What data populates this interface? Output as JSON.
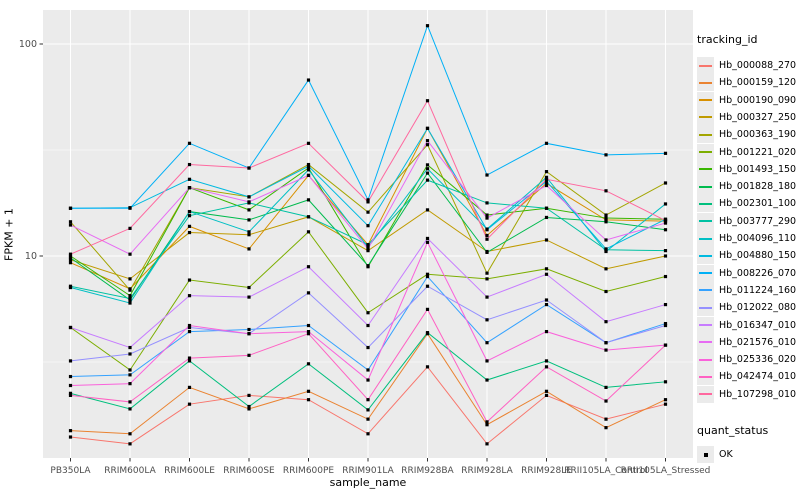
{
  "chart_data": {
    "type": "line",
    "title": "",
    "xlabel": "sample_name",
    "ylabel": "FPKM + 1",
    "y_scale": "log10",
    "y_ticks": [
      {
        "value": 10,
        "label": "10"
      },
      {
        "value": 100,
        "label": "100"
      }
    ],
    "y_minor_ticks": [
      3.162,
      31.62
    ],
    "ylim": [
      1.1,
      145
    ],
    "grid": true,
    "legend_position": "right",
    "legend_title": "tracking_id",
    "quant_legend": {
      "title": "quant_status",
      "items": [
        {
          "label": "OK",
          "marker": "black-square"
        }
      ]
    },
    "point_marker": {
      "shape": "square",
      "color": "#000000",
      "size": 3.2
    },
    "colors": {
      "panel_bg": "#ebebeb",
      "grid_major": "#ffffff",
      "grid_minor": "#ffffff",
      "axis_text": "#4d4d4d",
      "text": "#000000"
    },
    "categories": [
      "PB350LA",
      "RRIM600LA",
      "RRIM600LE",
      "RRIM600SE",
      "RRIM600PE",
      "RRIM901LA",
      "RRIM928BA",
      "RRIM928LA",
      "RRIM928LE",
      "RRII105LA_Control",
      "RRII105LA_Stressed"
    ],
    "series": [
      {
        "name": "Hb_000088_270",
        "color": "#F8766D",
        "values": [
          1.4,
          1.3,
          2.0,
          2.2,
          2.1,
          1.45,
          3.0,
          1.3,
          2.2,
          1.7,
          2.0
        ]
      },
      {
        "name": "Hb_000159_120",
        "color": "#EA8331",
        "values": [
          1.5,
          1.45,
          2.4,
          1.9,
          2.3,
          1.7,
          4.3,
          1.6,
          2.3,
          1.55,
          2.1
        ]
      },
      {
        "name": "Hb_000190_090",
        "color": "#D89000",
        "values": [
          9.3,
          7.0,
          13.8,
          10.8,
          24.0,
          11.3,
          40.0,
          12.5,
          22.0,
          14.8,
          14.6
        ]
      },
      {
        "name": "Hb_000327_250",
        "color": "#C09B00",
        "values": [
          9.6,
          7.8,
          12.9,
          12.6,
          15.3,
          10.6,
          16.5,
          10.5,
          11.9,
          8.7,
          10.0
        ]
      },
      {
        "name": "Hb_000363_190",
        "color": "#A3A500",
        "values": [
          14.5,
          6.9,
          21.0,
          19.0,
          27.0,
          16.1,
          33.5,
          8.3,
          25.0,
          15.6,
          22.1
        ]
      },
      {
        "name": "Hb_001221_020",
        "color": "#7CAE00",
        "values": [
          4.6,
          2.9,
          7.7,
          7.1,
          13.0,
          5.4,
          8.2,
          7.8,
          8.7,
          6.8,
          8.0
        ]
      },
      {
        "name": "Hb_001493_150",
        "color": "#39B600",
        "values": [
          10.0,
          6.5,
          21.0,
          16.5,
          26.0,
          8.9,
          26.9,
          15.6,
          16.8,
          15.1,
          14.9
        ]
      },
      {
        "name": "Hb_001828_180",
        "color": "#00BB4E",
        "values": [
          9.8,
          6.2,
          16.2,
          14.8,
          18.4,
          9.0,
          24.6,
          10.4,
          15.2,
          14.5,
          13.3
        ]
      },
      {
        "name": "Hb_002301_100",
        "color": "#00BF7D",
        "values": [
          2.25,
          1.9,
          3.2,
          1.95,
          3.1,
          1.88,
          4.35,
          2.6,
          3.2,
          2.4,
          2.55
        ]
      },
      {
        "name": "Hb_003777_290",
        "color": "#00C1A3",
        "values": [
          7.2,
          6.3,
          15.5,
          17.8,
          15.3,
          11.3,
          22.8,
          17.8,
          16.8,
          10.7,
          10.6
        ]
      },
      {
        "name": "Hb_004096_110",
        "color": "#00BFC4",
        "values": [
          7.1,
          6.0,
          16.2,
          13.0,
          25.5,
          11.0,
          25.8,
          13.4,
          23.5,
          10.5,
          17.6
        ]
      },
      {
        "name": "Hb_004880_150",
        "color": "#00BAE0",
        "values": [
          16.8,
          16.9,
          23.0,
          19.0,
          26.5,
          13.9,
          40.0,
          13.3,
          22.5,
          10.8,
          14.9
        ]
      },
      {
        "name": "Hb_008226_070",
        "color": "#00B0F6",
        "values": [
          16.8,
          16.8,
          34.0,
          26.0,
          67.6,
          18.4,
          122.0,
          24.1,
          34.0,
          30.0,
          30.5
        ]
      },
      {
        "name": "Hb_011224_160",
        "color": "#35A2FF",
        "values": [
          2.7,
          2.75,
          4.4,
          4.5,
          4.7,
          2.9,
          8.0,
          3.9,
          5.9,
          3.9,
          4.8
        ]
      },
      {
        "name": "Hb_012022_080",
        "color": "#9590FF",
        "values": [
          3.2,
          3.45,
          4.6,
          4.3,
          6.7,
          3.7,
          7.2,
          5.0,
          6.2,
          3.9,
          4.7
        ]
      },
      {
        "name": "Hb_016347_010",
        "color": "#C77CFF",
        "values": [
          4.6,
          3.7,
          6.5,
          6.4,
          8.9,
          4.7,
          12.1,
          6.4,
          8.2,
          4.9,
          5.9
        ]
      },
      {
        "name": "Hb_021576_010",
        "color": "#E76BF3",
        "values": [
          14.0,
          10.2,
          21.0,
          18.0,
          24.0,
          10.8,
          35.0,
          15.1,
          21.5,
          11.9,
          14.3
        ]
      },
      {
        "name": "Hb_025336_020",
        "color": "#FA62DB",
        "values": [
          2.45,
          2.5,
          4.7,
          4.3,
          4.4,
          2.6,
          11.6,
          3.2,
          4.4,
          3.6,
          3.8
        ]
      },
      {
        "name": "Hb_042474_010",
        "color": "#FF61C3",
        "values": [
          2.2,
          2.05,
          3.3,
          3.4,
          4.3,
          2.1,
          5.6,
          1.65,
          3.0,
          2.07,
          3.8
        ]
      },
      {
        "name": "Hb_107298_010",
        "color": "#FF689F",
        "values": [
          10.2,
          13.5,
          27.0,
          26.0,
          34.0,
          18.0,
          54.0,
          12.0,
          23.0,
          20.3,
          14.7
        ]
      }
    ]
  }
}
